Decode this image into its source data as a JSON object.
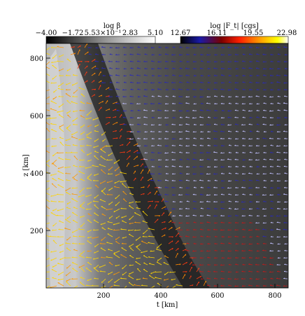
{
  "chart_data": {
    "type": "heatmap",
    "title": "",
    "xlabel": "t [km]",
    "ylabel": "z [km]",
    "xlim": [
      0,
      850
    ],
    "ylim": [
      0,
      850
    ],
    "x_ticks": [
      200,
      400,
      600,
      800
    ],
    "y_ticks": [
      200,
      400,
      600,
      800
    ],
    "background_field": {
      "label": "log β",
      "colormap": "grayscale",
      "colorbar_ticks": [
        "−4.00",
        "−1.72",
        "5.53×10⁻¹",
        "2.83",
        "5.10"
      ]
    },
    "vector_field": {
      "label": "log |F_t| [cgs]",
      "colormap": [
        "#000000",
        "#1a1aa8",
        "#7a0000",
        "#ff2000",
        "#ffa500",
        "#ffff00",
        "#ffffff"
      ],
      "colorbar_ticks": [
        "12.67",
        "16.11",
        "19.55",
        "22.98"
      ]
    },
    "grid": false,
    "legend": "none"
  }
}
